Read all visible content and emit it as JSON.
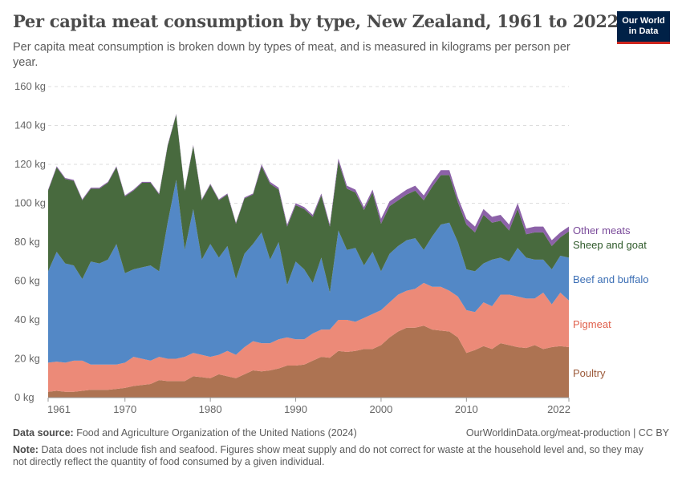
{
  "title": "Per capita meat consumption by type, New Zealand, 1961 to 2022",
  "subtitle": "Per capita meat consumption is broken down by types of meat, and is measured in kilograms per person per year.",
  "logo": {
    "line1": "Our World",
    "line2": "in Data"
  },
  "footer": {
    "source_label": "Data source:",
    "source": "Food and Agriculture Organization of the United Nations (2024)",
    "url": "OurWorldinData.org/meat-production | CC BY",
    "note_label": "Note:",
    "note": "Data does not include fish and seafood. Figures show meat supply and do not correct for waste at the household level and, so they may not directly reflect the quantity of food consumed by a given individual."
  },
  "chart_data": {
    "type": "area",
    "stacked": true,
    "grid": true,
    "legend": "right",
    "ylim": [
      0,
      160
    ],
    "yticks": [
      0,
      20,
      40,
      60,
      80,
      100,
      120,
      140,
      160
    ],
    "yunit": " kg",
    "xticks": [
      1961,
      1970,
      1980,
      1990,
      2000,
      2010,
      2022
    ],
    "x": [
      1961,
      1962,
      1963,
      1964,
      1965,
      1966,
      1967,
      1968,
      1969,
      1970,
      1971,
      1972,
      1973,
      1974,
      1975,
      1976,
      1977,
      1978,
      1979,
      1980,
      1981,
      1982,
      1983,
      1984,
      1985,
      1986,
      1987,
      1988,
      1989,
      1990,
      1991,
      1992,
      1993,
      1994,
      1995,
      1996,
      1997,
      1998,
      1999,
      2000,
      2001,
      2002,
      2003,
      2004,
      2005,
      2006,
      2007,
      2008,
      2009,
      2010,
      2011,
      2012,
      2013,
      2014,
      2015,
      2016,
      2017,
      2018,
      2019,
      2020,
      2021,
      2022
    ],
    "series": [
      {
        "name": "Poultry",
        "color": "#ad7352",
        "label_color": "#9c5a3a",
        "values": [
          3,
          3.5,
          3,
          3,
          3.5,
          4,
          4,
          4,
          4.5,
          5,
          6,
          6.5,
          7,
          9,
          8.5,
          8.5,
          8.5,
          11,
          10.5,
          10,
          12,
          11,
          10,
          12,
          14,
          13.5,
          14,
          15,
          16.5,
          16.5,
          17,
          19,
          21,
          20.5,
          24,
          23.5,
          24,
          25,
          25,
          27,
          31,
          34,
          36,
          36,
          37,
          35,
          34.5,
          34,
          31,
          23,
          24.5,
          26.5,
          25,
          28,
          27,
          26,
          25.5,
          27,
          25,
          26,
          26.5,
          26
        ]
      },
      {
        "name": "Pigmeat",
        "color": "#ec8a78",
        "label_color": "#e0604c",
        "values": [
          15,
          15,
          15,
          16,
          15.5,
          13,
          13,
          13,
          12.5,
          13,
          15,
          13.5,
          12,
          12,
          11.5,
          11.5,
          12.5,
          12,
          11.5,
          11,
          10,
          13,
          12,
          14,
          15,
          14.5,
          14,
          15,
          14.5,
          13.5,
          13,
          14,
          14,
          14.5,
          16,
          16.5,
          15,
          16,
          18,
          18,
          18,
          19,
          19,
          20,
          22,
          22,
          22.5,
          21,
          21,
          22,
          19.5,
          22.5,
          22,
          25,
          26,
          26,
          25.5,
          24,
          29,
          22,
          27.5,
          24
        ]
      },
      {
        "name": "Beef and buffalo",
        "color": "#5388c6",
        "label_color": "#3c6fb5",
        "values": [
          47,
          56.5,
          51,
          49,
          42,
          53,
          52,
          54,
          62,
          46,
          45,
          47,
          49,
          44,
          70,
          92,
          55,
          74,
          49,
          58,
          50,
          54,
          39,
          48,
          50,
          57,
          43,
          50,
          27,
          40,
          36,
          26,
          37,
          19,
          46,
          36,
          38,
          27,
          32,
          20,
          25,
          25,
          26,
          26,
          17,
          26,
          32,
          35,
          28,
          21,
          21,
          20,
          24,
          19,
          17,
          25,
          21,
          20,
          17,
          18,
          19,
          22
        ]
      },
      {
        "name": "Sheep and goat",
        "color": "#486a3e",
        "label_color": "#2f5a2a",
        "values": [
          41.5,
          43.5,
          43.5,
          43.5,
          40.5,
          37.5,
          38.5,
          39.5,
          39.5,
          39.5,
          40.5,
          43.5,
          42.5,
          39.5,
          39.5,
          33.5,
          30.5,
          32.5,
          30.5,
          30.5,
          29.5,
          26.5,
          28.5,
          28.5,
          25.5,
          34,
          39,
          27,
          30,
          29,
          31,
          34,
          32,
          34,
          35.5,
          31.5,
          28.5,
          28.5,
          30.5,
          24.5,
          24.5,
          23.5,
          23.5,
          24.5,
          25.5,
          25.5,
          25.5,
          24.5,
          20.5,
          23,
          20,
          25,
          19,
          19,
          16,
          20,
          12,
          14,
          14,
          12,
          9.5,
          13.5
        ]
      },
      {
        "name": "Other meats",
        "color": "#8c62a8",
        "label_color": "#7a4a9a",
        "values": [
          0.5,
          0.5,
          0.5,
          0.5,
          0.5,
          0.5,
          0.5,
          0.5,
          0.5,
          0.5,
          0.5,
          0.5,
          0.5,
          0.5,
          0.5,
          0.5,
          0.5,
          0.5,
          0.5,
          0.5,
          0.5,
          0.5,
          0.5,
          0.5,
          0.5,
          1,
          1,
          1,
          1,
          1,
          1,
          1,
          1,
          1,
          1.5,
          1.5,
          1.5,
          1.5,
          1.5,
          2.5,
          2.5,
          2.5,
          2.5,
          2.5,
          2.5,
          2.5,
          2.5,
          2.5,
          2.5,
          3,
          3,
          3,
          3,
          3,
          3,
          3,
          3,
          3,
          3,
          3,
          2.5,
          2.5
        ]
      }
    ]
  }
}
